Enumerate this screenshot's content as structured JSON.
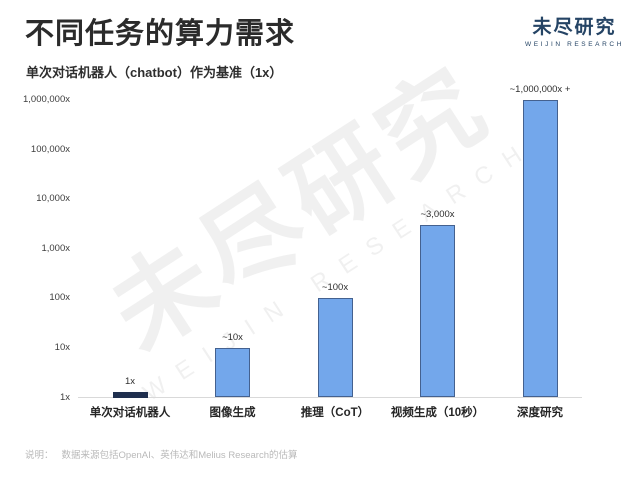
{
  "header": {
    "logo_cn": "未尽研究",
    "logo_en": "WEIJIN RESEARCH",
    "logo_color": "#254465"
  },
  "watermark": {
    "cn": "未尽研究",
    "en": "WEIJIN RESEARCH"
  },
  "footer": {
    "label": "说明：",
    "text": "数据来源包括OpenAI、英伟达和Melius Research的估算"
  },
  "chart_data": {
    "type": "bar",
    "scale": "log10",
    "title": "不同任务的算力需求",
    "subtitle": "单次对话机器人（chatbot）作为基准（1x）",
    "categories": [
      "单次对话机器人",
      "图像生成",
      "推理（CoT）",
      "视频生成（10秒）",
      "深度研究"
    ],
    "values": [
      1,
      10,
      100,
      3000,
      1000000
    ],
    "value_labels": [
      "1x",
      "~10x",
      "~100x",
      "~3,000x",
      "~1,000,000x +"
    ],
    "bar_colors": [
      "#1f2f4e",
      "#73a7eb",
      "#73a7eb",
      "#73a7eb",
      "#73a7eb"
    ],
    "bar_border_colors": [
      "#1f2f4e",
      "#44618f",
      "#44618f",
      "#44618f",
      "#44618f"
    ],
    "yticks": [
      "1x",
      "10x",
      "100x",
      "1,000x",
      "10,000x",
      "100,000x",
      "1,000,000x"
    ],
    "ylim_exponents": [
      0,
      6
    ],
    "grid": false,
    "legend": false,
    "accent_blue": "#73a7eb",
    "accent_navy": "#1f2f4e"
  }
}
